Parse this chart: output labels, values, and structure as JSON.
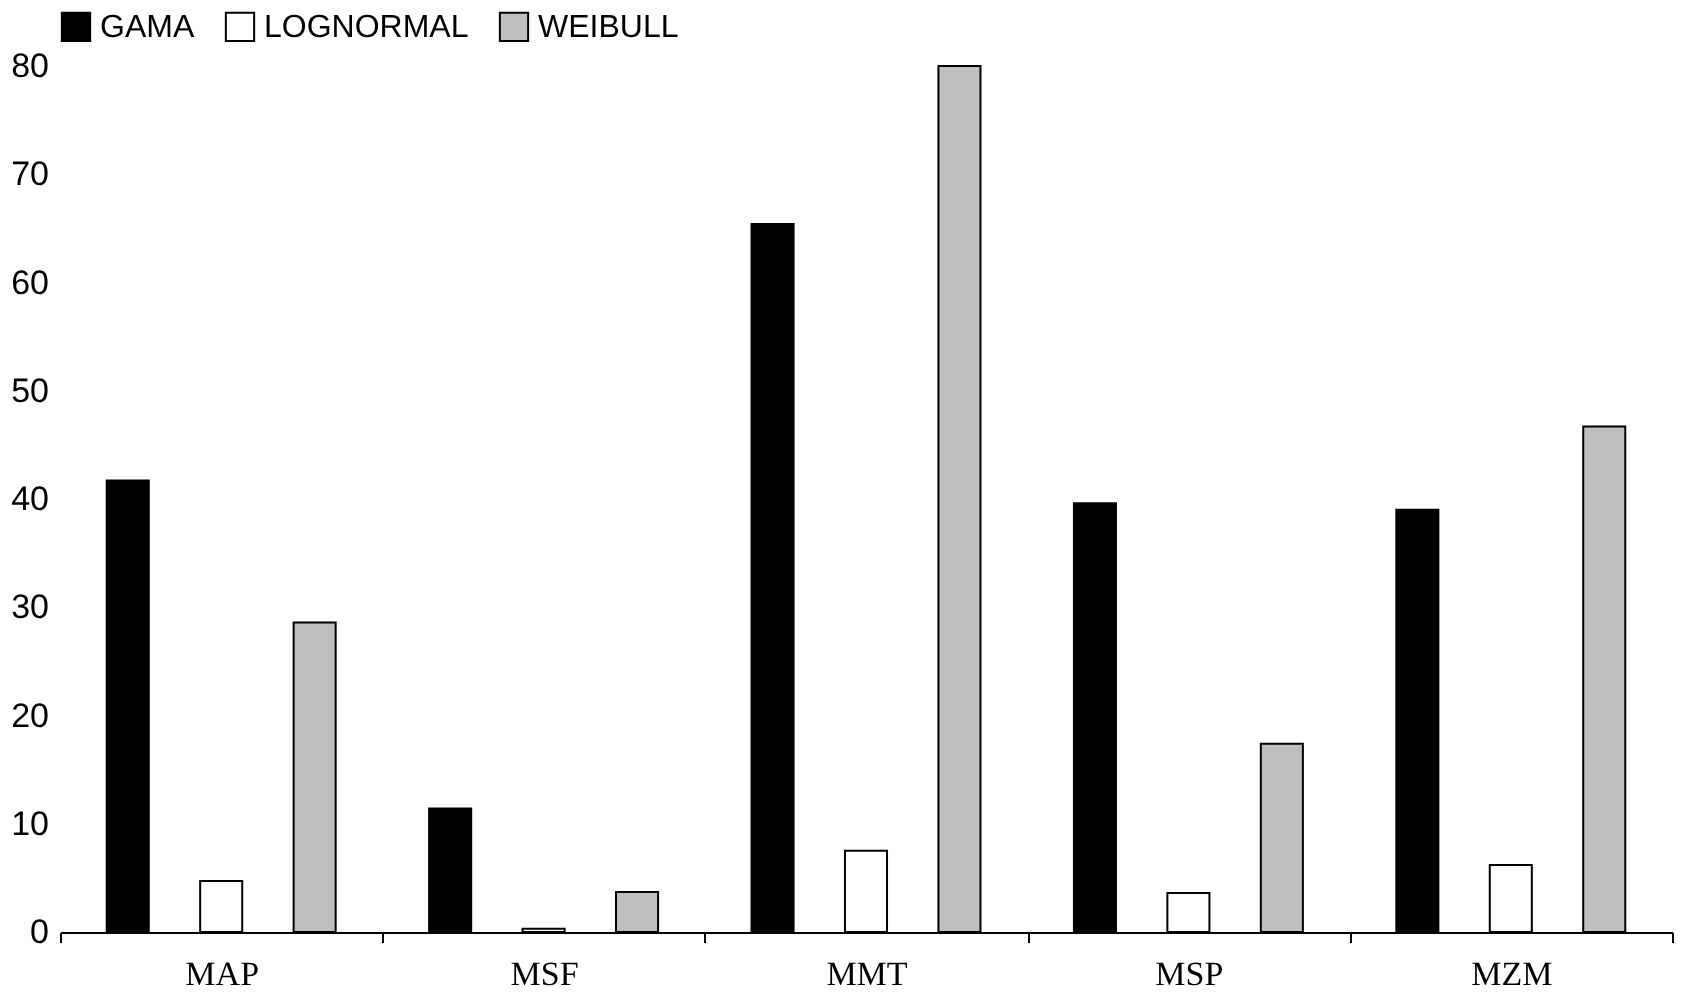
{
  "chart_data": {
    "type": "bar",
    "categories": [
      "MAP",
      "MSF",
      "MMT",
      "MSP",
      "MZM"
    ],
    "series": [
      {
        "name": "GAMA",
        "color": "#000000",
        "values": [
          41.7,
          11.4,
          65.4,
          39.6,
          39.0
        ]
      },
      {
        "name": "LOGNORMAL",
        "color": "#ffffff",
        "values": [
          4.7,
          0.3,
          7.5,
          3.6,
          6.2
        ]
      },
      {
        "name": "WEIBULL",
        "color": "#bfbfbf",
        "values": [
          28.6,
          3.7,
          80.0,
          17.4,
          46.7
        ]
      }
    ],
    "ylim": [
      0,
      80
    ],
    "yticks": [
      0,
      10,
      20,
      30,
      40,
      50,
      60,
      70,
      80
    ],
    "grid": false,
    "legend": "top"
  }
}
